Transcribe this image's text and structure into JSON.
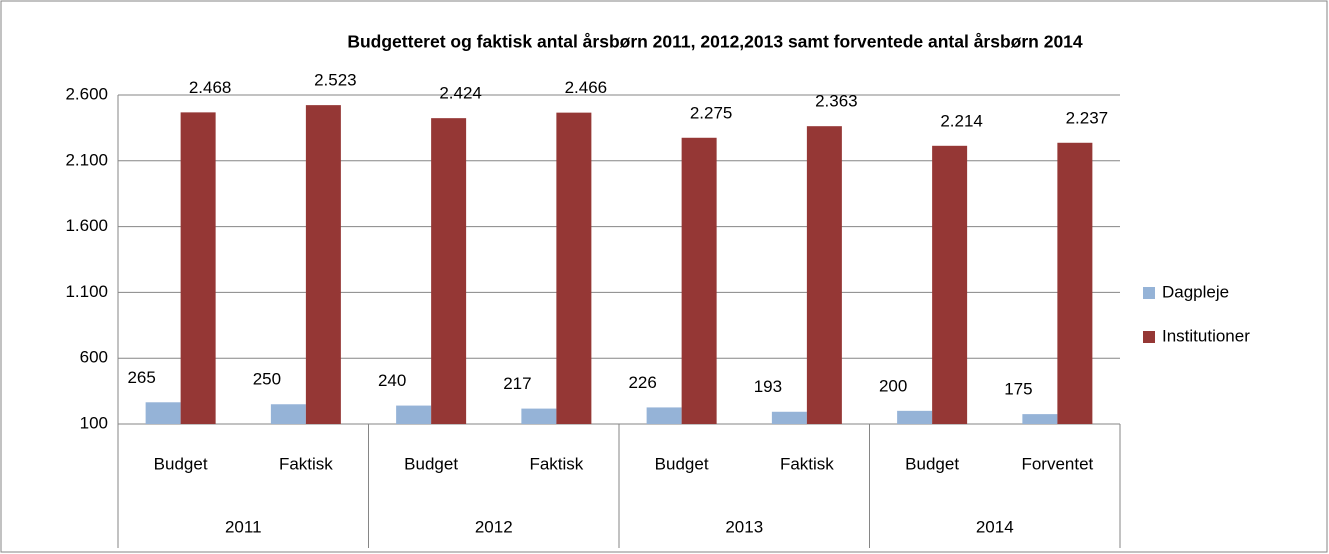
{
  "chart_data": {
    "type": "bar",
    "title": "Budgetteret og faktisk antal årsbørn 2011,  2012,2013  samt forventede antal årsbørn 2014",
    "categories": [
      "Budget",
      "Faktisk",
      "Budget",
      "Faktisk",
      "Budget",
      "Faktisk",
      "Budget",
      "Forventet"
    ],
    "groups": [
      "2011",
      "2012",
      "2013",
      "2014"
    ],
    "series": [
      {
        "name": "Dagpleje",
        "color": "#95b3d7",
        "values": [
          265,
          250,
          240,
          217,
          226,
          193,
          200,
          175
        ]
      },
      {
        "name": "Institutioner",
        "color": "#953735",
        "values": [
          2468,
          2523,
          2424,
          2466,
          2275,
          2363,
          2214,
          2237
        ],
        "value_labels": [
          "2.468",
          "2.523",
          "2.424",
          "2.466",
          "2.275",
          "2.363",
          "2.214",
          "2.237"
        ]
      }
    ],
    "ylim": [
      100,
      2600
    ],
    "yticks": [
      100,
      600,
      {
        "value": 1100,
        "label": "1.100"
      },
      {
        "value": 1600,
        "label": "1.600"
      },
      {
        "value": 2100,
        "label": "2.100"
      },
      {
        "value": 2600,
        "label": "2.600"
      }
    ],
    "grid": true,
    "legend": "right"
  }
}
